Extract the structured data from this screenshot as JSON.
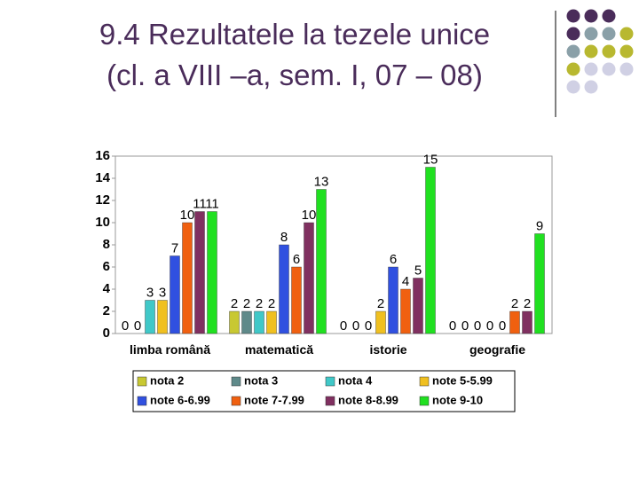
{
  "chart_data": {
    "type": "bar",
    "title": [
      "9.4 Rezultatele la tezele unice",
      "(cl. a VIII –a, sem. I, 07 – 08)"
    ],
    "categories": [
      "limba română",
      "matematică",
      "istorie",
      "geografie"
    ],
    "series": [
      {
        "name": "nota 2",
        "color": "#c8c832",
        "values": [
          0,
          2,
          0,
          0
        ]
      },
      {
        "name": "nota 3",
        "color": "#5f8a8a",
        "values": [
          0,
          2,
          0,
          0
        ]
      },
      {
        "name": "nota 4",
        "color": "#40c8c8",
        "values": [
          3,
          2,
          0,
          0
        ]
      },
      {
        "name": "note 5-5.99",
        "color": "#f0c020",
        "values": [
          3,
          2,
          2,
          0
        ]
      },
      {
        "name": "note 6-6.99",
        "color": "#3050e0",
        "values": [
          7,
          8,
          6,
          0
        ]
      },
      {
        "name": "note 7-7.99",
        "color": "#f06010",
        "values": [
          10,
          6,
          4,
          2
        ]
      },
      {
        "name": "note 8-8.99",
        "color": "#803060",
        "values": [
          11,
          10,
          5,
          2
        ]
      },
      {
        "name": "note 9-10",
        "color": "#20e020",
        "values": [
          11,
          13,
          15,
          9
        ]
      }
    ],
    "ylim": [
      0,
      16
    ],
    "yticks": [
      0,
      2,
      4,
      6,
      8,
      10,
      12,
      14,
      16
    ]
  }
}
